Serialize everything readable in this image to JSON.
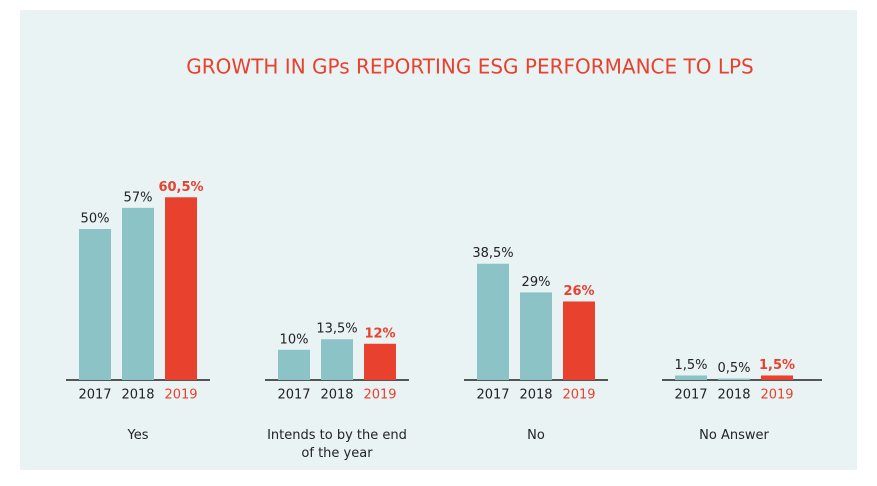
{
  "chart_data": {
    "type": "bar",
    "title": "GROWTH IN GPs REPORTING ESG PERFORMANCE TO LPS",
    "categories": [
      "Yes",
      "Intends to by the end of the year",
      "No",
      "No Answer"
    ],
    "ylim": [
      0,
      100
    ],
    "series": [
      {
        "name": "2017",
        "color": "#8cc3c6",
        "values": [
          50,
          10,
          38.5,
          1.5
        ],
        "value_labels": [
          "50%",
          "10%",
          "38,5%",
          "1,5%"
        ]
      },
      {
        "name": "2018",
        "color": "#8cc3c6",
        "values": [
          57,
          13.5,
          29,
          0.5
        ],
        "value_labels": [
          "57%",
          "13,5%",
          "29%",
          "0,5%"
        ]
      },
      {
        "name": "2019",
        "color": "#e8412e",
        "values": [
          60.5,
          12,
          26,
          1.5
        ],
        "value_labels": [
          "60,5%",
          "12%",
          "26%",
          "1,5%"
        ]
      }
    ]
  }
}
